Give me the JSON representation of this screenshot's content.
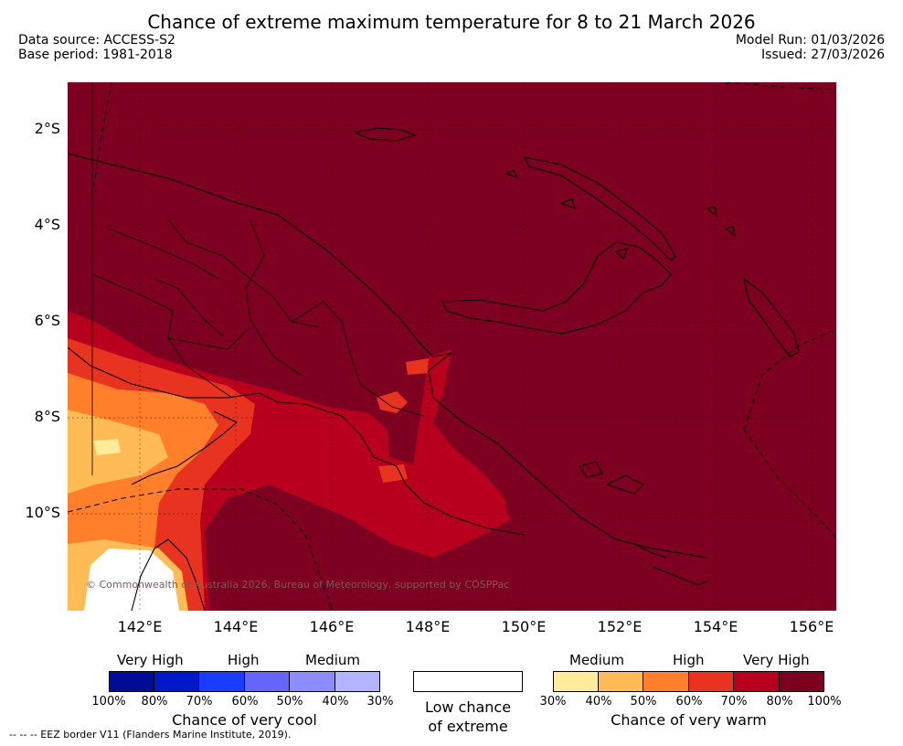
{
  "title": "Chance of extreme maximum temperature for 8 to 21 March 2026",
  "data_source": "Data source: ACCESS-S2",
  "base_period": "Base period: 1981-2018",
  "model_run": "Model Run: 01/03/2026",
  "issued": "Issued: 27/03/2026",
  "latitude_labels": [
    "2°S",
    "4°S",
    "6°S",
    "8°S",
    "10°S"
  ],
  "longitude_labels": [
    "142°E",
    "144°E",
    "146°E",
    "148°E",
    "150°E",
    "152°E",
    "154°E",
    "156°E"
  ],
  "copyright": "© Commonwealth of Australia 2026, Bureau of Meteorology, supported by COSPPac",
  "cool_legend": {
    "levels": [
      "Very High",
      "High",
      "Medium"
    ],
    "ticks": [
      "100%",
      "80%",
      "70%",
      "60%",
      "50%",
      "40%",
      "30%"
    ],
    "colors": [
      "#000c96",
      "#0019c8",
      "#1a3cff",
      "#6666ff",
      "#8c8cff",
      "#b3b3ff"
    ],
    "caption": "Chance of very cool"
  },
  "neutral_legend": {
    "caption_line1": "Low chance",
    "caption_line2": "of extreme"
  },
  "warm_legend": {
    "levels": [
      "Medium",
      "High",
      "Very High"
    ],
    "ticks": [
      "30%",
      "40%",
      "50%",
      "60%",
      "70%",
      "80%",
      "100%"
    ],
    "colors": [
      "#ffeb99",
      "#ffbb55",
      "#ff7f2a",
      "#e83320",
      "#b8001e",
      "#7d0020"
    ],
    "caption": "Chance of very warm"
  },
  "eez_note": "--  --  -- EEZ border V11 (Flanders Marine Institute, 2019)."
}
